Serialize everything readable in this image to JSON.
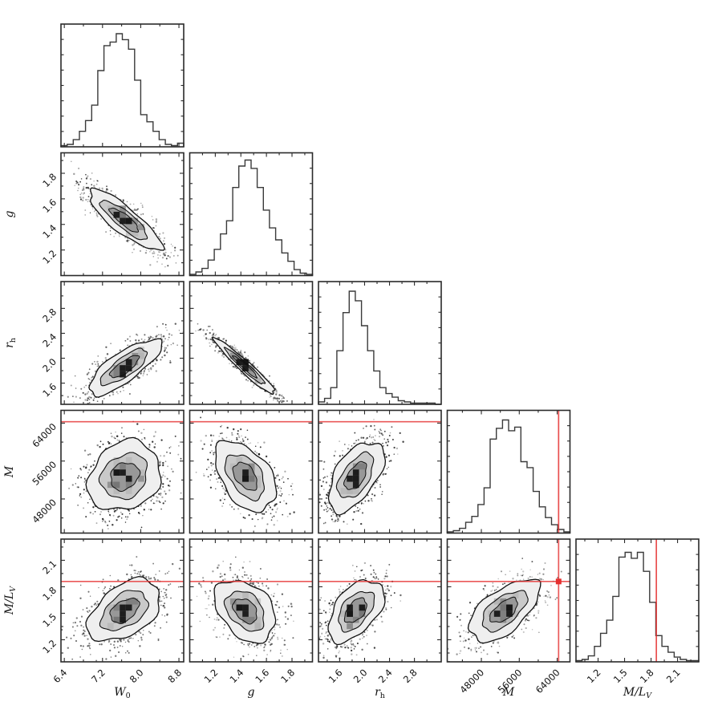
{
  "figure": {
    "background": "#ffffff",
    "panel_border_color": "#2a2a2a",
    "hist_line_color": "#3a3a3a",
    "scatter_color": "#000000",
    "contour_line_color": "#111111",
    "contour_fill_levels": [
      "#efefef",
      "#c9c9c9",
      "#989898"
    ],
    "core_color": "#171717",
    "pixel_block_colors": [
      "#b0b0b0",
      "#6f6f6f"
    ],
    "truth_color": "#e53030",
    "tick_color": "#2a2a2a",
    "label_color": "#111111"
  },
  "chart_data": {
    "type": "scatter",
    "subtype": "corner-plot-posterior-matrix",
    "title": "",
    "grid": "off",
    "layout": "lower-triangle 5x5: histograms on diagonal, 2D scatter+contour panels below diagonal, upper triangle empty",
    "parameters": [
      {
        "id": "W0",
        "label": {
          "main": "W",
          "sub": "0",
          "sub_italic": false
        },
        "range": [
          6.33,
          8.9
        ],
        "ticks": [
          6.4,
          7.2,
          8.0,
          8.8
        ],
        "tick_labels": [
          "6.4",
          "7.2",
          "8.0",
          "8.8"
        ],
        "center": 7.66,
        "sigma": 0.4,
        "hist": [
          0.01,
          0.02,
          0.06,
          0.13,
          0.22,
          0.35,
          0.64,
          0.85,
          0.88,
          0.95,
          0.9,
          0.82,
          0.56,
          0.27,
          0.21,
          0.13,
          0.06,
          0.02,
          0.01,
          0.03
        ]
      },
      {
        "id": "g",
        "label": {
          "main": "g",
          "sub": "",
          "sub_italic": false
        },
        "range": [
          1.0,
          1.96
        ],
        "ticks": [
          1.2,
          1.4,
          1.6,
          1.8
        ],
        "tick_labels": [
          "1.2",
          "1.4",
          "1.6",
          "1.8"
        ],
        "center": 1.435,
        "sigma": 0.125,
        "hist": [
          0.01,
          0.03,
          0.06,
          0.13,
          0.22,
          0.35,
          0.46,
          0.74,
          0.92,
          0.97,
          0.9,
          0.74,
          0.55,
          0.4,
          0.3,
          0.19,
          0.12,
          0.05,
          0.02,
          0.01
        ]
      },
      {
        "id": "rh",
        "label": {
          "main": "r",
          "sub": "h",
          "sub_italic": false
        },
        "range": [
          1.26,
          3.23
        ],
        "ticks": [
          1.6,
          2.0,
          2.4,
          2.8
        ],
        "tick_labels": [
          "1.6",
          "2.0",
          "2.4",
          "2.8"
        ],
        "center": 1.86,
        "sigma": 0.235,
        "hist": [
          0.02,
          0.05,
          0.14,
          0.45,
          0.77,
          0.95,
          0.87,
          0.66,
          0.45,
          0.28,
          0.14,
          0.09,
          0.06,
          0.03,
          0.02,
          0.01,
          0.01,
          0.01,
          0.01,
          0.0
        ]
      },
      {
        "id": "M",
        "label": {
          "main": "M",
          "sub": "",
          "sub_italic": false
        },
        "range": [
          40800,
          66700
        ],
        "ticks": [
          48000,
          56000,
          64000
        ],
        "tick_labels": [
          "48000",
          "56000",
          "64000"
        ],
        "center": 52800,
        "sigma": 3900,
        "hist": [
          0.01,
          0.02,
          0.04,
          0.09,
          0.14,
          0.24,
          0.38,
          0.79,
          0.88,
          0.95,
          0.86,
          0.89,
          0.6,
          0.55,
          0.35,
          0.22,
          0.13,
          0.07,
          0.03,
          0.01
        ]
      },
      {
        "id": "MLV",
        "label": {
          "main": "M/L",
          "sub": "V",
          "sub_italic": true
        },
        "range": [
          0.95,
          2.34
        ],
        "ticks": [
          1.2,
          1.5,
          1.8,
          2.1
        ],
        "tick_labels": [
          "1.2",
          "1.5",
          "1.8",
          "2.1"
        ],
        "center": 1.53,
        "sigma": 0.185,
        "hist": [
          0.01,
          0.02,
          0.05,
          0.13,
          0.24,
          0.35,
          0.55,
          0.88,
          0.92,
          0.87,
          0.92,
          0.76,
          0.5,
          0.22,
          0.13,
          0.08,
          0.04,
          0.02,
          0.01,
          0.01
        ]
      }
    ],
    "correlations": {
      "W0|g": -0.85,
      "W0|rh": 0.78,
      "g|rh": -0.96,
      "W0|M": 0.18,
      "g|M": -0.45,
      "rh|M": 0.55,
      "W0|MLV": 0.45,
      "g|MLV": -0.35,
      "rh|MLV": 0.5,
      "M|MLV": 0.6
    },
    "truths": {
      "M": 64300,
      "MLV": 1.86
    },
    "truth_marker": {
      "panel_x": "M",
      "panel_y": "MLV",
      "shape": "square",
      "color": "#e53030"
    },
    "contour_sigma_levels": [
      1.9,
      1.22,
      0.75
    ]
  }
}
